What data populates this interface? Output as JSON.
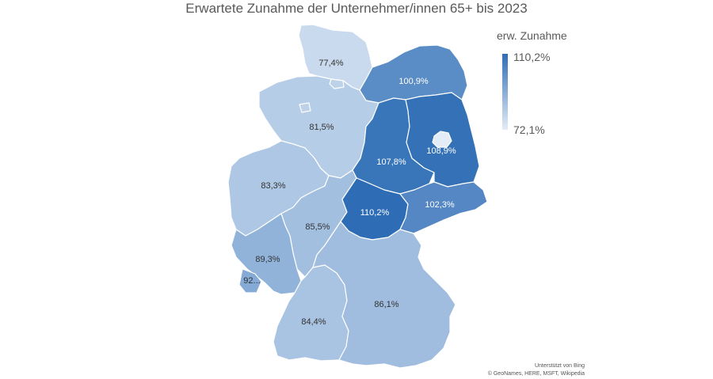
{
  "title": "Erwartete Zunahme der Unternehmer/innen 65+ bis 2023",
  "legend": {
    "title": "erw. Zunahme",
    "max_label": "110,2%",
    "min_label": "72,1%",
    "max_value": 110.2,
    "min_value": 72.1,
    "color_low": "#e3ecf7",
    "color_high": "#2e6db5"
  },
  "regions": [
    {
      "key": "sh",
      "label": "77,4%",
      "value": 77.4
    },
    {
      "key": "mv",
      "label": "100,9%",
      "value": 100.9
    },
    {
      "key": "ni",
      "label": "81,5%",
      "value": 81.5
    },
    {
      "key": "st",
      "label": "107,8%",
      "value": 107.8
    },
    {
      "key": "bb",
      "label": "108,9%",
      "value": 108.9
    },
    {
      "key": "be",
      "label": "",
      "value": 72.1
    },
    {
      "key": "nw",
      "label": "83,3%",
      "value": 83.3
    },
    {
      "key": "he",
      "label": "85,5%",
      "value": 85.5
    },
    {
      "key": "th",
      "label": "110,2%",
      "value": 110.2
    },
    {
      "key": "sn",
      "label": "102,3%",
      "value": 102.3
    },
    {
      "key": "rp",
      "label": "89,3%",
      "value": 89.3
    },
    {
      "key": "sl",
      "label": "92...",
      "value": 92.0
    },
    {
      "key": "bw",
      "label": "84,4%",
      "value": 84.4
    },
    {
      "key": "by",
      "label": "86,1%",
      "value": 86.1
    },
    {
      "key": "hh",
      "label": "",
      "value": 80.0
    },
    {
      "key": "hb",
      "label": "",
      "value": 80.0
    }
  ],
  "attribution": {
    "line1": "Unterstützt von Bing",
    "line2": "© GeoNames, HERE, MSFT, Wikipedia"
  }
}
